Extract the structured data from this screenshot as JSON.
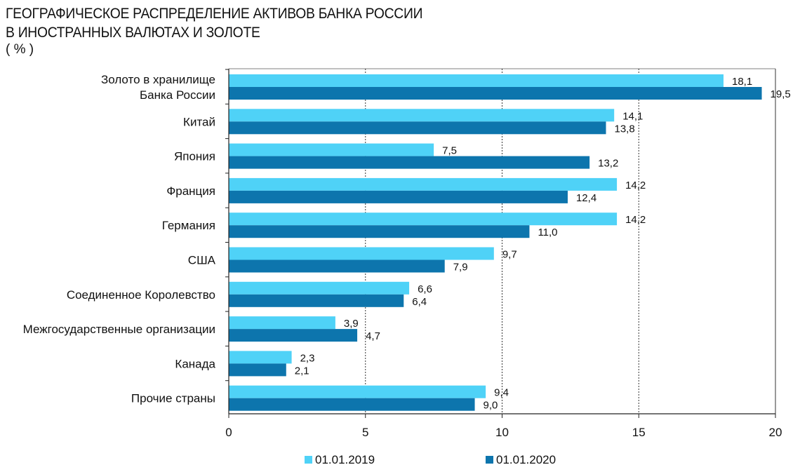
{
  "header": {
    "title_line1": "ГЕОГРАФИЧЕСКОЕ РАСПРЕДЕЛЕНИЕ АКТИВОВ БАНКА РОССИИ",
    "title_line2": "В ИНОСТРАННЫХ ВАЛЮТАХ И ЗОЛОТЕ",
    "units": "( % )"
  },
  "chart_data": {
    "type": "bar",
    "orientation": "horizontal",
    "categories": [
      [
        "Золото в хранилище",
        "Банка России"
      ],
      [
        "Китай"
      ],
      [
        "Япония"
      ],
      [
        "Франция"
      ],
      [
        "Германия"
      ],
      [
        "США"
      ],
      [
        "Соединенное Королевство"
      ],
      [
        "Межгосударственные организации"
      ],
      [
        "Канада"
      ],
      [
        "Прочие страны"
      ]
    ],
    "series": [
      {
        "name": "01.01.2019",
        "color": "#4fd2f7",
        "values": [
          18.1,
          14.1,
          7.5,
          14.2,
          14.2,
          9.7,
          6.6,
          3.9,
          2.3,
          9.4
        ],
        "labels": [
          "18,1",
          "14,1",
          "7,5",
          "14,2",
          "14,2",
          "9,7",
          "6,6",
          "3,9",
          "2,3",
          "9,4"
        ]
      },
      {
        "name": "01.01.2020",
        "color": "#0d75ad",
        "values": [
          19.5,
          13.8,
          13.2,
          12.4,
          11.0,
          7.9,
          6.4,
          4.7,
          2.1,
          9.0
        ],
        "labels": [
          "19,5",
          "13,8",
          "13,2",
          "12,4",
          "11,0",
          "7,9",
          "6,4",
          "4,7",
          "2,1",
          "9,0"
        ]
      }
    ],
    "xlim": [
      0,
      20
    ],
    "xticks": [
      0,
      5,
      10,
      15,
      20
    ],
    "grid": "vertical dashed at 5, 10, 15",
    "legend": "bottom-center"
  }
}
